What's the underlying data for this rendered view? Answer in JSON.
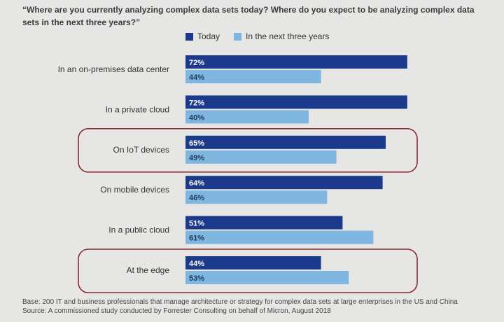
{
  "title": "“Where are you currently analyzing complex data sets today? Where do you expect to be analyzing complex data sets in the next three years?”",
  "legend": {
    "today": "Today",
    "future": "In the next three years"
  },
  "colors": {
    "today": "#1b3a8c",
    "future": "#7eb6df",
    "highlight": "#8a2a33",
    "background": "#e6e6e4"
  },
  "chart_data": {
    "type": "bar",
    "orientation": "horizontal",
    "categories": [
      "In an on-premises data center",
      "In a private cloud",
      "On IoT devices",
      "On mobile devices",
      "In a public cloud",
      "At the edge"
    ],
    "series": [
      {
        "name": "Today",
        "values": [
          72,
          72,
          65,
          64,
          51,
          44
        ],
        "labels": [
          "72%",
          "72%",
          "65%",
          "64%",
          "51%",
          "44%"
        ]
      },
      {
        "name": "In the next three years",
        "values": [
          44,
          40,
          49,
          46,
          61,
          53
        ],
        "labels": [
          "44%",
          "40%",
          "49%",
          "46%",
          "61%",
          "53%"
        ]
      }
    ],
    "highlighted_categories": [
      "On IoT devices",
      "At the edge"
    ],
    "xlim": [
      0,
      100
    ],
    "grid": false,
    "legend_position": "top"
  },
  "footnote": {
    "base": "Base: 200 IT and business professionals that manage architecture or strategy for complex data sets at large enterprises in the US and China",
    "source": "Source: A commissioned study conducted by Forrester Consulting on behalf of Micron, August 2018"
  }
}
